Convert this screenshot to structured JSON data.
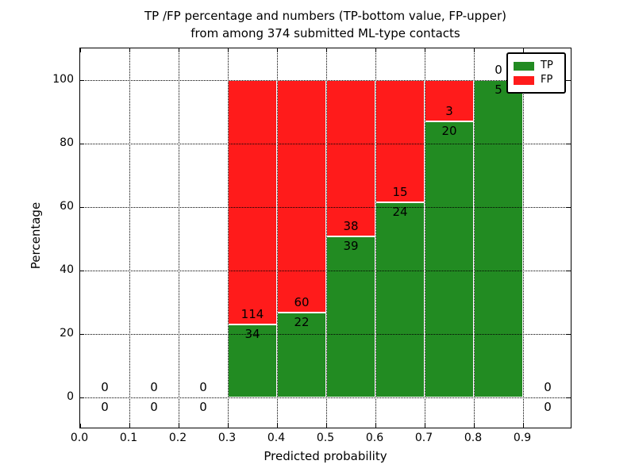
{
  "chart_data": {
    "type": "bar",
    "stacked": true,
    "title_lines": [
      "TP /FP percentage and numbers (TP-bottom value, FP-upper)",
      "from among 374 submitted ML-type contacts"
    ],
    "xlabel": "Predicted probability",
    "ylabel": "Percentage",
    "xlim": [
      0.0,
      1.0
    ],
    "ylim": [
      -10,
      110
    ],
    "xticks": [
      "0.0",
      "0.1",
      "0.2",
      "0.3",
      "0.4",
      "0.5",
      "0.6",
      "0.7",
      "0.8",
      "0.9"
    ],
    "yticks": [
      0,
      20,
      40,
      60,
      80,
      100
    ],
    "grid": "dotted-above-bars",
    "total_contacts": 374,
    "legend": {
      "position": "upper-right",
      "entries": [
        {
          "label": "TP",
          "color": "#228B22"
        },
        {
          "label": "FP",
          "color": "#FF1B1B"
        }
      ]
    },
    "bins": [
      {
        "x_start": 0.0,
        "x_end": 0.1,
        "tp": 0,
        "fp": 0,
        "tp_pct": 0,
        "fp_pct": 0
      },
      {
        "x_start": 0.1,
        "x_end": 0.2,
        "tp": 0,
        "fp": 0,
        "tp_pct": 0,
        "fp_pct": 0
      },
      {
        "x_start": 0.2,
        "x_end": 0.3,
        "tp": 0,
        "fp": 0,
        "tp_pct": 0,
        "fp_pct": 0
      },
      {
        "x_start": 0.3,
        "x_end": 0.4,
        "tp": 34,
        "fp": 114,
        "tp_pct": 22.97,
        "fp_pct": 77.03
      },
      {
        "x_start": 0.4,
        "x_end": 0.5,
        "tp": 22,
        "fp": 60,
        "tp_pct": 26.83,
        "fp_pct": 73.17
      },
      {
        "x_start": 0.5,
        "x_end": 0.6,
        "tp": 39,
        "fp": 38,
        "tp_pct": 50.65,
        "fp_pct": 49.35
      },
      {
        "x_start": 0.6,
        "x_end": 0.7,
        "tp": 24,
        "fp": 15,
        "tp_pct": 61.54,
        "fp_pct": 38.46
      },
      {
        "x_start": 0.7,
        "x_end": 0.8,
        "tp": 20,
        "fp": 3,
        "tp_pct": 86.96,
        "fp_pct": 13.04
      },
      {
        "x_start": 0.8,
        "x_end": 0.9,
        "tp": 5,
        "fp": 0,
        "tp_pct": 100,
        "fp_pct": 0
      },
      {
        "x_start": 0.9,
        "x_end": 1.0,
        "tp": 0,
        "fp": 0,
        "tp_pct": 0,
        "fp_pct": 0
      }
    ],
    "colors": {
      "tp": "#228B22",
      "fp": "#FF1B1B",
      "background": "#FFFFFF",
      "text": "#000000"
    }
  }
}
